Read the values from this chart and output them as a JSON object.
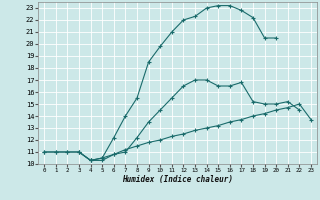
{
  "xlabel": "Humidex (Indice chaleur)",
  "bg_color": "#cce8e8",
  "grid_color": "#ffffff",
  "line_color": "#1a6b6b",
  "xlim": [
    -0.5,
    23.5
  ],
  "ylim": [
    10,
    23.5
  ],
  "xticks": [
    0,
    1,
    2,
    3,
    4,
    5,
    6,
    7,
    8,
    9,
    10,
    11,
    12,
    13,
    14,
    15,
    16,
    17,
    18,
    19,
    20,
    21,
    22,
    23
  ],
  "yticks": [
    10,
    11,
    12,
    13,
    14,
    15,
    16,
    17,
    18,
    19,
    20,
    21,
    22,
    23
  ],
  "curve1_x": [
    0,
    1,
    2,
    3,
    4,
    5,
    6,
    7,
    8,
    9,
    10,
    11,
    12,
    13,
    14,
    15,
    16,
    17,
    18,
    19,
    20
  ],
  "curve1_y": [
    11,
    11,
    11,
    11,
    10.3,
    10.5,
    12.2,
    14.0,
    15.5,
    18.5,
    19.8,
    21.0,
    22.0,
    22.3,
    23.0,
    23.2,
    23.2,
    22.8,
    22.2,
    20.5,
    20.5
  ],
  "curve2_x": [
    3,
    4,
    5,
    6,
    7,
    8,
    9,
    10,
    11,
    12,
    13,
    14,
    15,
    16,
    17,
    18,
    19,
    20,
    21,
    22
  ],
  "curve2_y": [
    11,
    10.3,
    10.3,
    10.8,
    11.0,
    12.2,
    13.5,
    14.5,
    15.5,
    16.5,
    17.0,
    17.0,
    16.5,
    16.5,
    16.8,
    15.2,
    15.0,
    15.0,
    15.2,
    14.5
  ],
  "curve3_x": [
    0,
    1,
    2,
    3,
    4,
    5,
    6,
    7,
    8,
    9,
    10,
    11,
    12,
    13,
    14,
    15,
    16,
    17,
    18,
    19,
    20,
    21,
    22,
    23
  ],
  "curve3_y": [
    11,
    11,
    11,
    11,
    10.3,
    10.5,
    10.8,
    11.2,
    11.5,
    11.8,
    12.0,
    12.3,
    12.5,
    12.8,
    13.0,
    13.2,
    13.5,
    13.7,
    14.0,
    14.2,
    14.5,
    14.7,
    15.0,
    13.7
  ]
}
